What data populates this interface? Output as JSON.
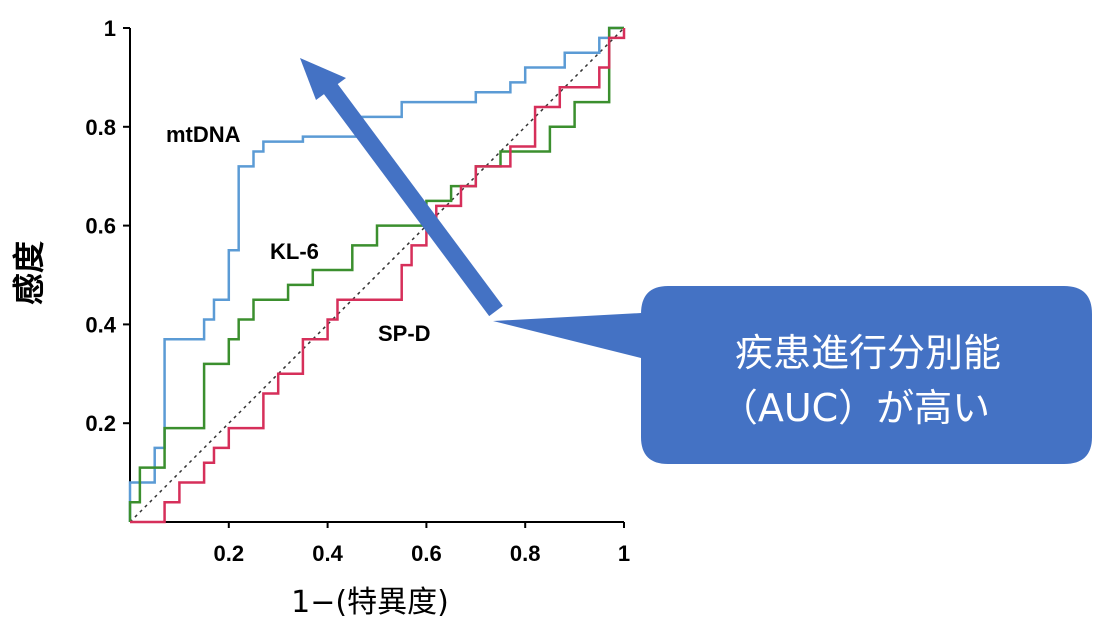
{
  "chart_data": {
    "type": "line",
    "xlabel": "1−(特異度)",
    "ylabel": "感度",
    "xlim": [
      0,
      1
    ],
    "ylim": [
      0,
      1
    ],
    "x_ticks": [
      "0.2",
      "0.4",
      "0.6",
      "0.8",
      "1"
    ],
    "y_ticks": [
      "0.2",
      "0.4",
      "0.6",
      "0.8",
      "1"
    ],
    "grid": false,
    "reference_line": {
      "style": "dotted",
      "from": [
        0,
        0
      ],
      "to": [
        1,
        1
      ]
    },
    "series": [
      {
        "name": "mtDNA",
        "color": "#5b9bd5",
        "points": [
          [
            0,
            0
          ],
          [
            0,
            0.08
          ],
          [
            0.05,
            0.08
          ],
          [
            0.05,
            0.15
          ],
          [
            0.07,
            0.15
          ],
          [
            0.07,
            0.37
          ],
          [
            0.15,
            0.37
          ],
          [
            0.15,
            0.41
          ],
          [
            0.17,
            0.41
          ],
          [
            0.17,
            0.45
          ],
          [
            0.2,
            0.45
          ],
          [
            0.2,
            0.55
          ],
          [
            0.22,
            0.55
          ],
          [
            0.22,
            0.72
          ],
          [
            0.25,
            0.72
          ],
          [
            0.25,
            0.75
          ],
          [
            0.27,
            0.75
          ],
          [
            0.27,
            0.77
          ],
          [
            0.35,
            0.77
          ],
          [
            0.35,
            0.78
          ],
          [
            0.47,
            0.78
          ],
          [
            0.47,
            0.82
          ],
          [
            0.55,
            0.82
          ],
          [
            0.55,
            0.85
          ],
          [
            0.7,
            0.85
          ],
          [
            0.7,
            0.87
          ],
          [
            0.77,
            0.87
          ],
          [
            0.77,
            0.89
          ],
          [
            0.8,
            0.89
          ],
          [
            0.8,
            0.92
          ],
          [
            0.88,
            0.92
          ],
          [
            0.88,
            0.95
          ],
          [
            0.95,
            0.95
          ],
          [
            0.95,
            0.98
          ],
          [
            0.97,
            0.98
          ],
          [
            0.97,
            1
          ],
          [
            1,
            1
          ]
        ]
      },
      {
        "name": "KL-6",
        "color": "#3b8f2e",
        "points": [
          [
            0,
            0
          ],
          [
            0,
            0.04
          ],
          [
            0.02,
            0.04
          ],
          [
            0.02,
            0.11
          ],
          [
            0.07,
            0.11
          ],
          [
            0.07,
            0.19
          ],
          [
            0.15,
            0.19
          ],
          [
            0.15,
            0.32
          ],
          [
            0.2,
            0.32
          ],
          [
            0.2,
            0.37
          ],
          [
            0.22,
            0.37
          ],
          [
            0.22,
            0.41
          ],
          [
            0.25,
            0.41
          ],
          [
            0.25,
            0.45
          ],
          [
            0.32,
            0.45
          ],
          [
            0.32,
            0.48
          ],
          [
            0.37,
            0.48
          ],
          [
            0.37,
            0.51
          ],
          [
            0.45,
            0.51
          ],
          [
            0.45,
            0.56
          ],
          [
            0.5,
            0.56
          ],
          [
            0.5,
            0.6
          ],
          [
            0.6,
            0.6
          ],
          [
            0.6,
            0.65
          ],
          [
            0.65,
            0.65
          ],
          [
            0.65,
            0.68
          ],
          [
            0.7,
            0.68
          ],
          [
            0.7,
            0.72
          ],
          [
            0.75,
            0.72
          ],
          [
            0.75,
            0.75
          ],
          [
            0.85,
            0.75
          ],
          [
            0.85,
            0.8
          ],
          [
            0.9,
            0.8
          ],
          [
            0.9,
            0.85
          ],
          [
            0.97,
            0.85
          ],
          [
            0.97,
            1
          ],
          [
            1,
            1
          ]
        ]
      },
      {
        "name": "SP-D",
        "color": "#d62f5a",
        "points": [
          [
            0,
            0
          ],
          [
            0.07,
            0
          ],
          [
            0.07,
            0.04
          ],
          [
            0.1,
            0.04
          ],
          [
            0.1,
            0.08
          ],
          [
            0.15,
            0.08
          ],
          [
            0.15,
            0.12
          ],
          [
            0.17,
            0.12
          ],
          [
            0.17,
            0.15
          ],
          [
            0.2,
            0.15
          ],
          [
            0.2,
            0.19
          ],
          [
            0.27,
            0.19
          ],
          [
            0.27,
            0.26
          ],
          [
            0.3,
            0.26
          ],
          [
            0.3,
            0.3
          ],
          [
            0.35,
            0.3
          ],
          [
            0.35,
            0.37
          ],
          [
            0.4,
            0.37
          ],
          [
            0.4,
            0.41
          ],
          [
            0.42,
            0.41
          ],
          [
            0.42,
            0.45
          ],
          [
            0.55,
            0.45
          ],
          [
            0.55,
            0.52
          ],
          [
            0.57,
            0.52
          ],
          [
            0.57,
            0.56
          ],
          [
            0.6,
            0.56
          ],
          [
            0.6,
            0.6
          ],
          [
            0.62,
            0.6
          ],
          [
            0.62,
            0.64
          ],
          [
            0.67,
            0.64
          ],
          [
            0.67,
            0.68
          ],
          [
            0.7,
            0.68
          ],
          [
            0.7,
            0.72
          ],
          [
            0.77,
            0.72
          ],
          [
            0.77,
            0.76
          ],
          [
            0.82,
            0.76
          ],
          [
            0.82,
            0.84
          ],
          [
            0.87,
            0.84
          ],
          [
            0.87,
            0.88
          ],
          [
            0.95,
            0.88
          ],
          [
            0.95,
            0.92
          ],
          [
            0.97,
            0.92
          ],
          [
            0.97,
            0.98
          ],
          [
            1,
            0.98
          ],
          [
            1,
            1
          ]
        ]
      }
    ],
    "series_labels": [
      {
        "text": "mtDNA"
      },
      {
        "text": "KL-6"
      },
      {
        "text": "SP-D"
      }
    ],
    "callout": {
      "lines": [
        "疾患進行分別能",
        "（AUC）が高い"
      ],
      "fill": "#4472c4",
      "arrow_color": "#4472c4"
    }
  }
}
